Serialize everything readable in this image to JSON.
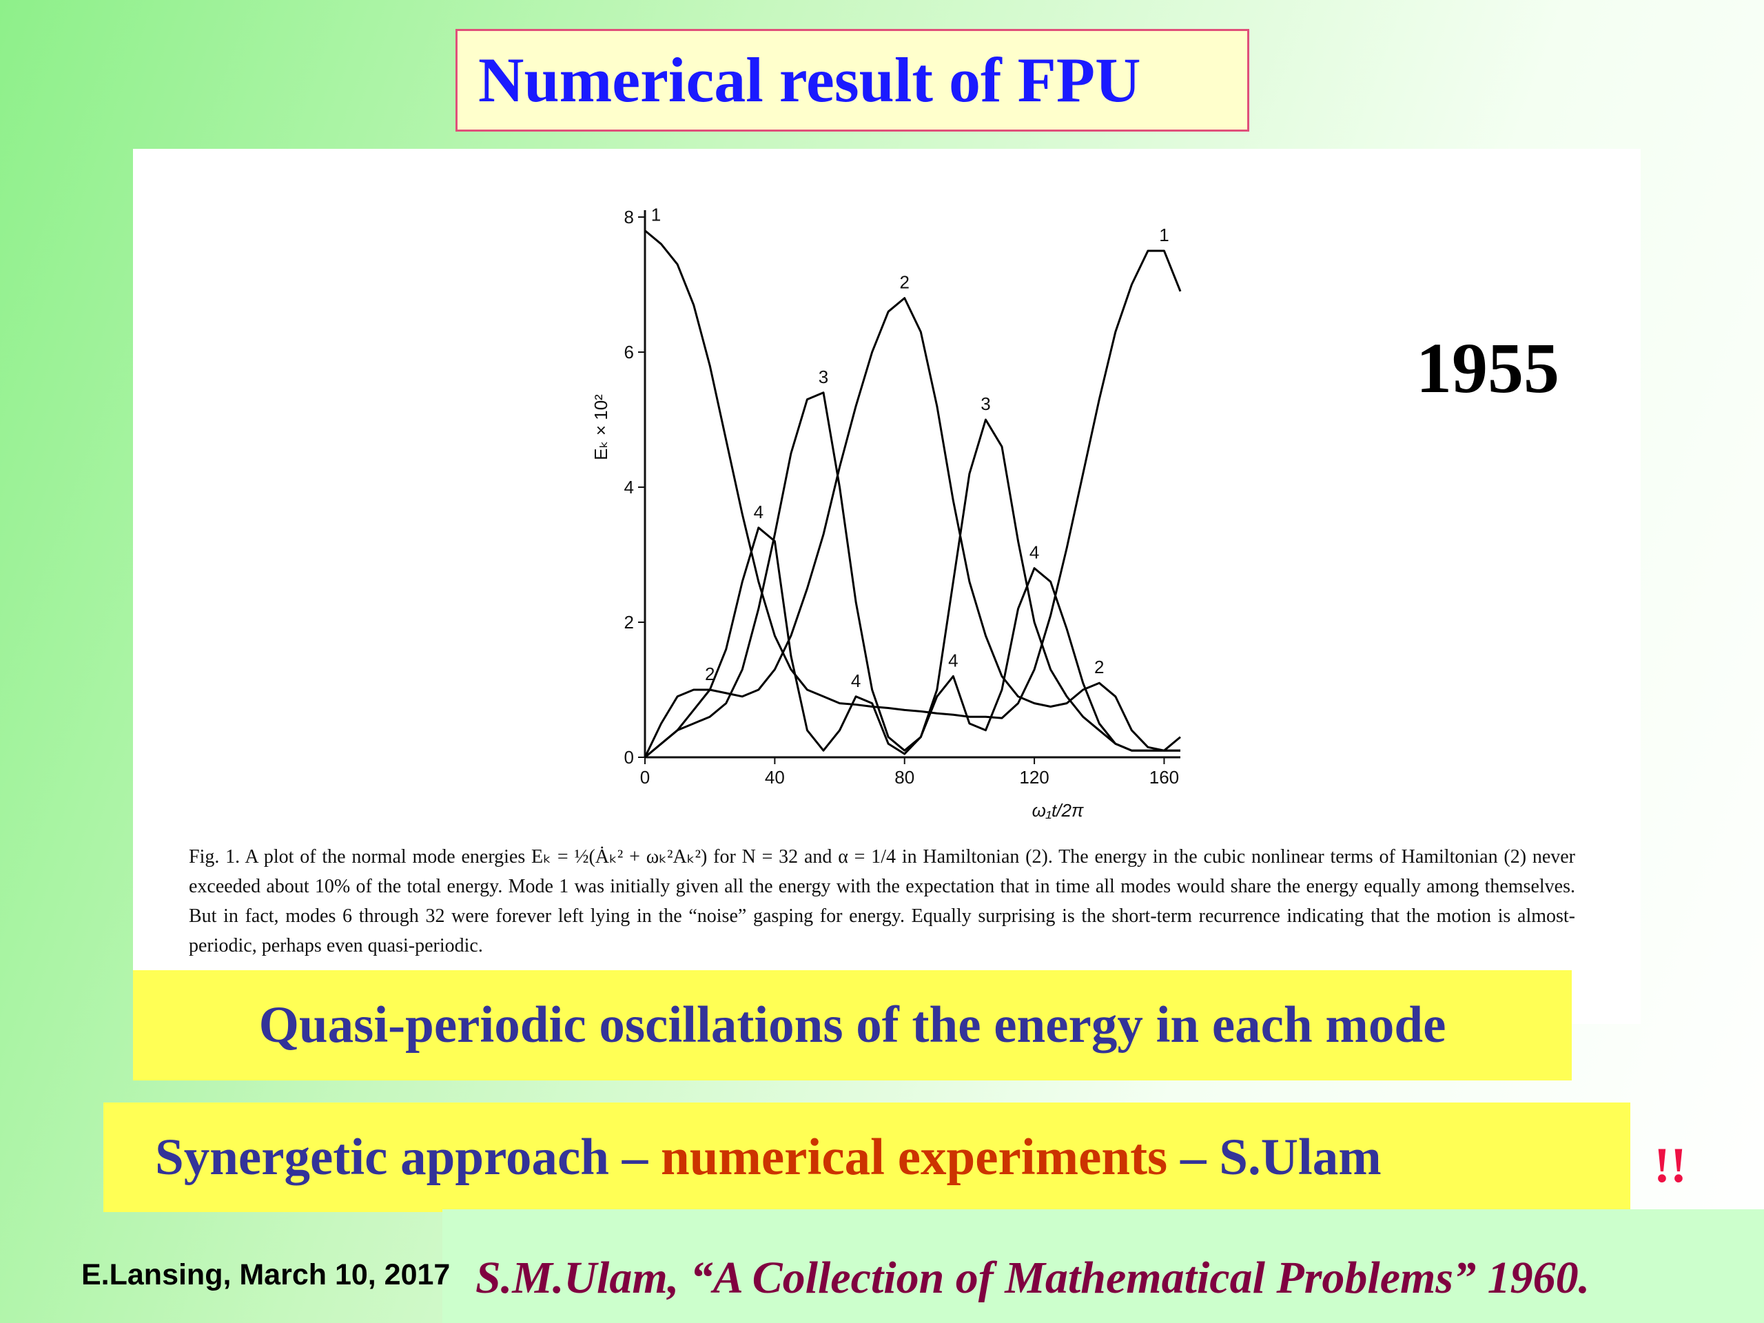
{
  "title": "Numerical result of FPU",
  "year": "1955",
  "caption": "Fig. 1. A plot of the normal mode energies Eₖ = ½(Ȧₖ² + ωₖ²Aₖ²) for N = 32 and α = 1/4 in Hamiltonian (2). The energy in the cubic nonlinear terms of Hamiltonian (2) never exceeded about 10% of the total energy. Mode 1 was initially given all the energy with the expectation that in time all modes would share the energy equally among themselves. But in fact, modes 6 through 32 were forever left lying in the “noise” gasping for energy. Equally surprising is the short-term recurrence indicating that the motion is almost-periodic, perhaps even quasi-periodic.",
  "highlight_1": "Quasi-periodic oscillations of the energy in each mode",
  "highlight_2": {
    "part_1": "Synergetic approach – ",
    "part_2": "numerical experiments",
    "part_3": " – S.Ulam"
  },
  "exclamation": "!!",
  "footer": "E.Lansing, March 10, 2017",
  "reference": "S.M.Ulam, “A Collection of Mathematical Problems” 1960.",
  "chart_data": {
    "type": "line",
    "x_label": "ω₁t/2π",
    "y_label": "Eₖ × 10²",
    "xlim": [
      0,
      165
    ],
    "ylim": [
      0,
      8
    ],
    "xticks": [
      0,
      40,
      80,
      120,
      160
    ],
    "yticks": [
      0,
      2,
      4,
      6,
      8
    ],
    "x": [
      0,
      5,
      10,
      15,
      20,
      25,
      30,
      35,
      40,
      45,
      50,
      55,
      60,
      65,
      70,
      75,
      80,
      85,
      90,
      95,
      100,
      105,
      110,
      115,
      120,
      125,
      130,
      135,
      140,
      145,
      150,
      155,
      160,
      165
    ],
    "series": [
      {
        "name": "1",
        "color": "#000000",
        "values": [
          7.8,
          7.6,
          7.3,
          6.7,
          5.8,
          4.7,
          3.6,
          2.6,
          1.8,
          1.3,
          1.0,
          0.9,
          0.8,
          0.78,
          0.75,
          0.73,
          0.7,
          0.68,
          0.65,
          0.63,
          0.6,
          0.6,
          0.58,
          0.8,
          1.3,
          2.1,
          3.1,
          4.2,
          5.3,
          6.3,
          7.0,
          7.5,
          7.5,
          6.9
        ]
      },
      {
        "name": "2",
        "color": "#000000",
        "values": [
          0,
          0.5,
          0.9,
          1.0,
          1.0,
          0.95,
          0.9,
          1.0,
          1.3,
          1.8,
          2.5,
          3.3,
          4.3,
          5.2,
          6.0,
          6.6,
          6.8,
          6.3,
          5.2,
          3.8,
          2.6,
          1.8,
          1.2,
          0.9,
          0.8,
          0.75,
          0.8,
          1.0,
          1.1,
          0.9,
          0.4,
          0.15,
          0.1,
          0.3
        ]
      },
      {
        "name": "3",
        "color": "#000000",
        "values": [
          0,
          0.2,
          0.4,
          0.5,
          0.6,
          0.8,
          1.3,
          2.2,
          3.3,
          4.5,
          5.3,
          5.4,
          4.0,
          2.3,
          1.0,
          0.3,
          0.1,
          0.3,
          1.0,
          2.6,
          4.2,
          5.0,
          4.6,
          3.2,
          2.0,
          1.3,
          0.9,
          0.6,
          0.4,
          0.2,
          0.1,
          0.1,
          0.1,
          0.1
        ]
      },
      {
        "name": "4",
        "color": "#000000",
        "values": [
          0,
          0.2,
          0.4,
          0.7,
          1.0,
          1.6,
          2.6,
          3.4,
          3.2,
          1.5,
          0.4,
          0.1,
          0.4,
          0.9,
          0.8,
          0.2,
          0.05,
          0.3,
          0.9,
          1.2,
          0.5,
          0.4,
          1.0,
          2.2,
          2.8,
          2.6,
          1.9,
          1.1,
          0.5,
          0.2,
          0.1,
          0.1,
          0.1,
          0.1
        ]
      }
    ]
  }
}
